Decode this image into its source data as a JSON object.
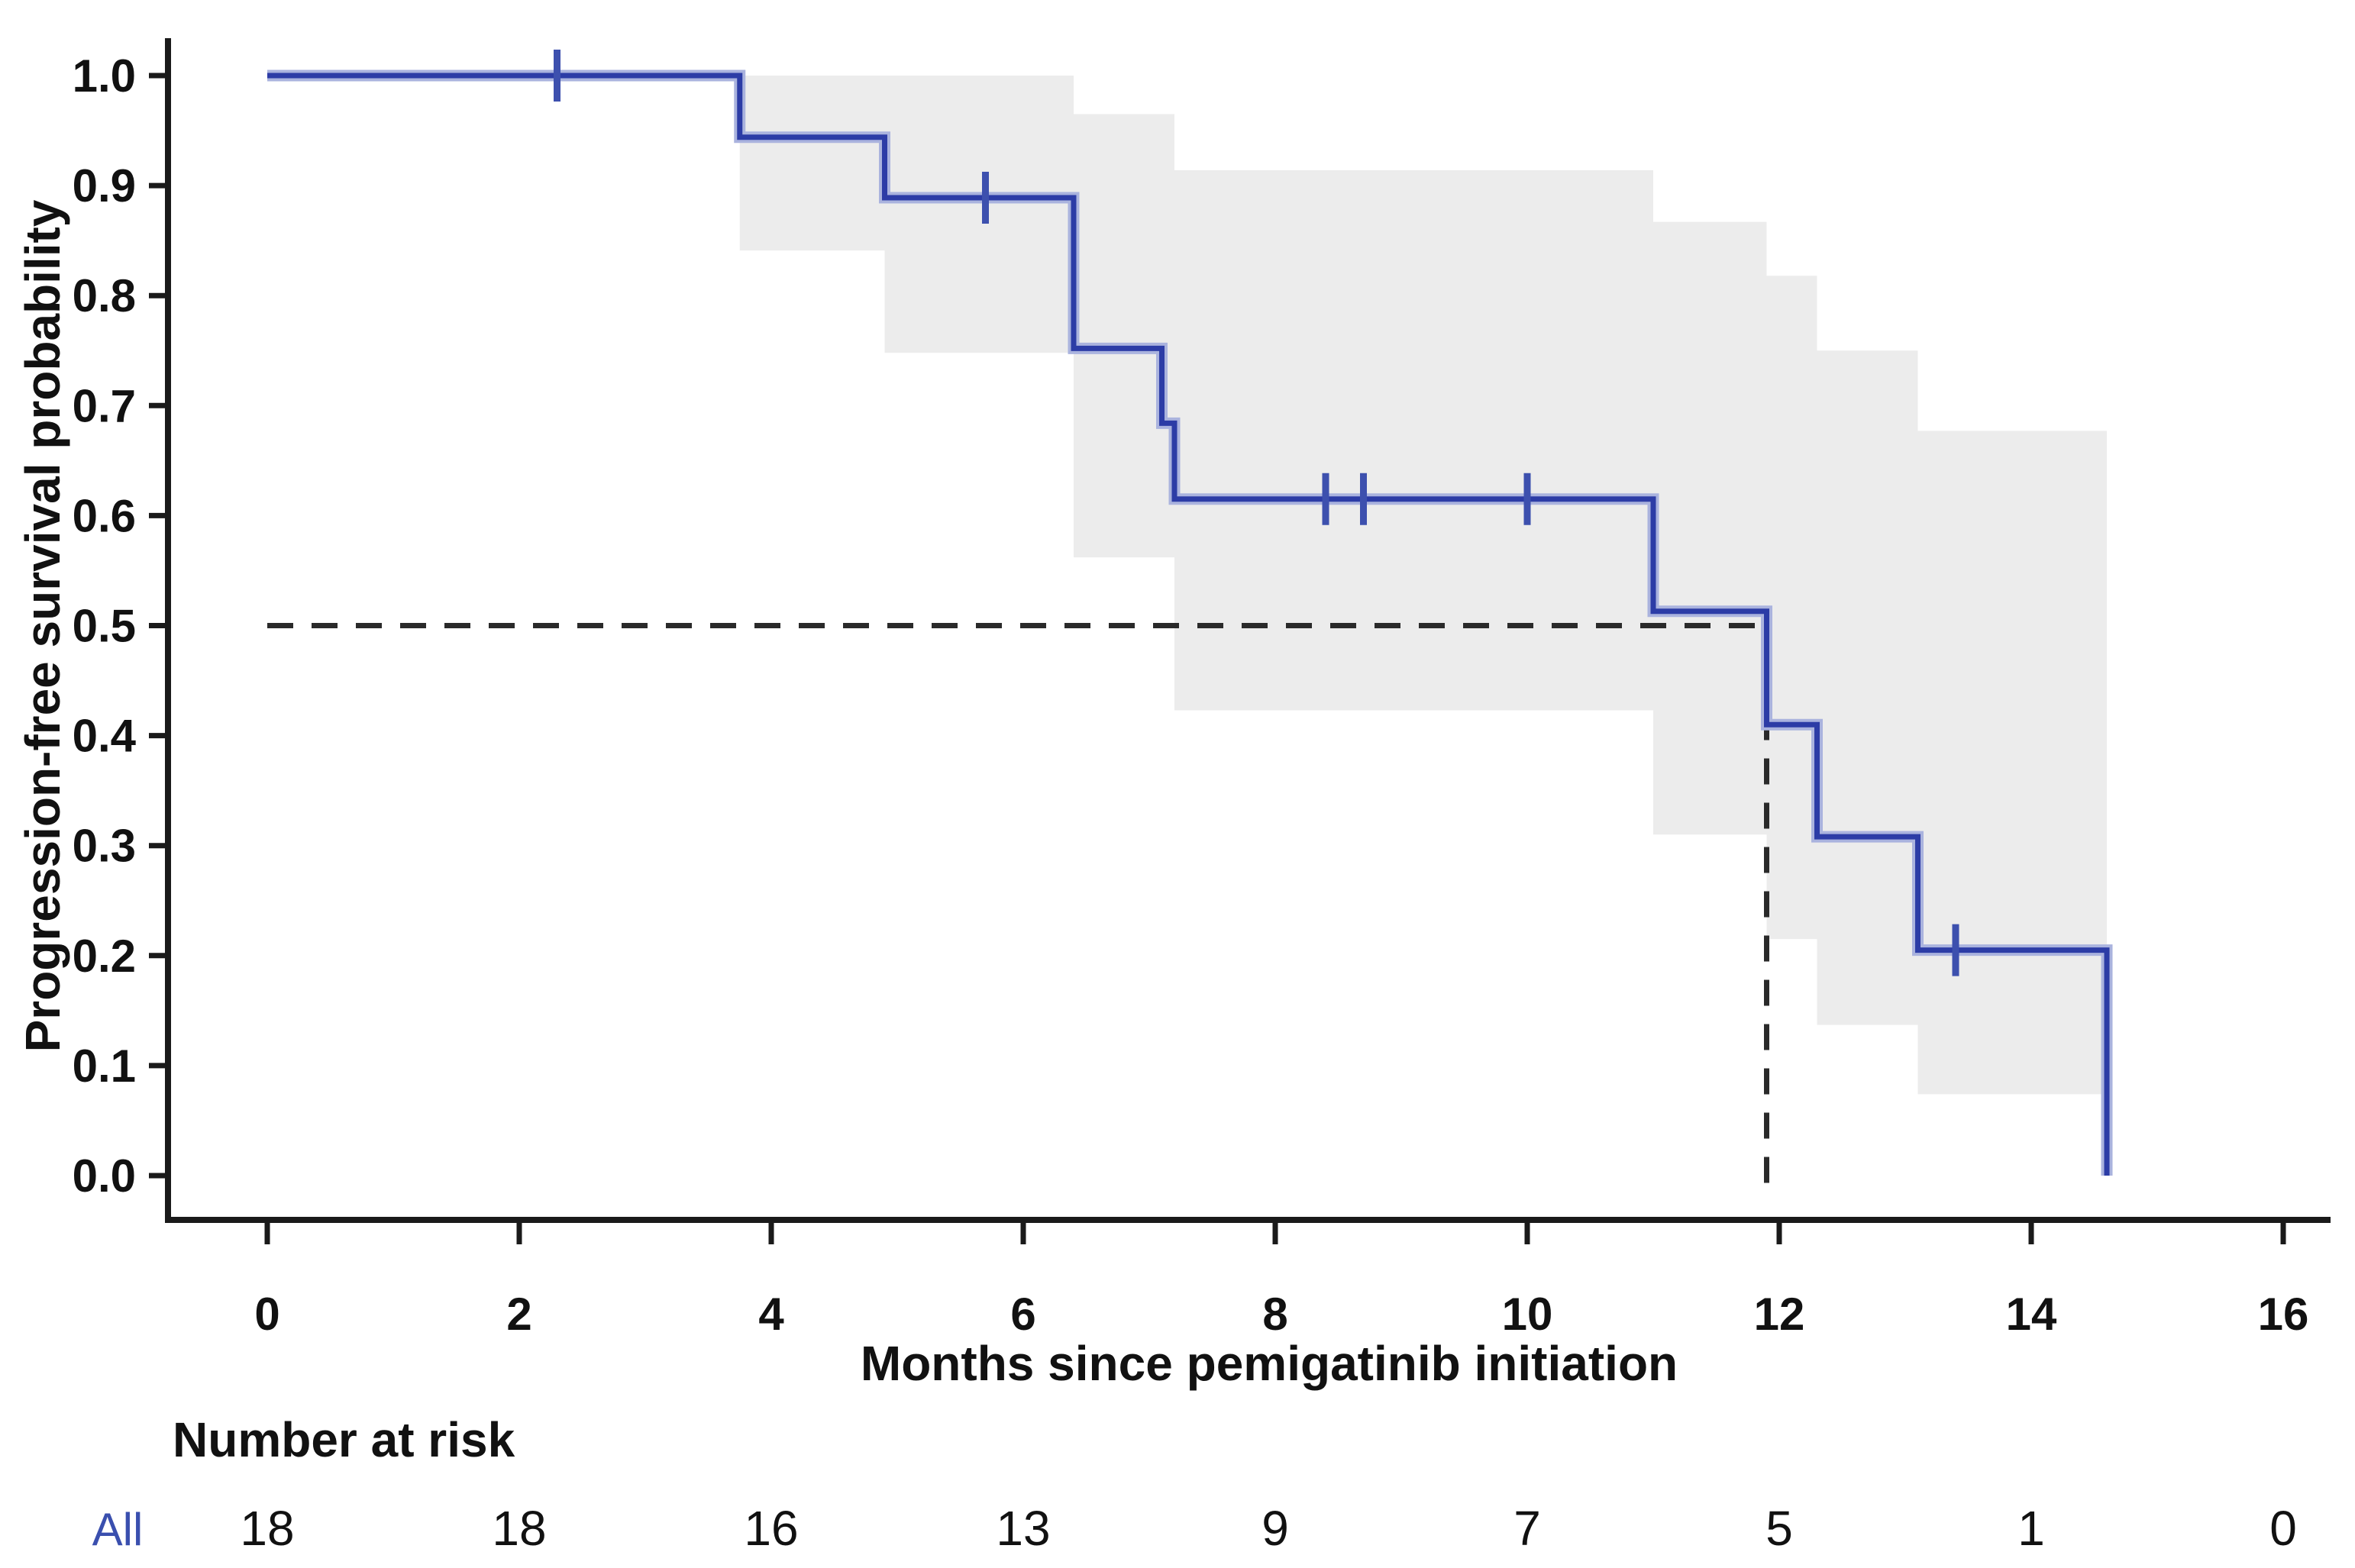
{
  "figure": {
    "background": "#ffffff",
    "description": "Kaplan-Meier progression-free survival curve with 95% confidence band, median line and number-at-risk table"
  },
  "chart_data": {
    "type": "line",
    "subtype": "kaplan-meier-step",
    "title": "",
    "xlabel": "Months since pemigatinib initiation",
    "ylabel": "Progression-free survival probability",
    "xlim": [
      0,
      16
    ],
    "ylim": [
      0.0,
      1.0
    ],
    "x_ticks": [
      0,
      2,
      4,
      6,
      8,
      10,
      12,
      14,
      16
    ],
    "y_ticks": [
      0.0,
      0.1,
      0.2,
      0.3,
      0.4,
      0.5,
      0.6,
      0.7,
      0.8,
      0.9,
      1.0
    ],
    "grid": false,
    "legend": "none",
    "colors": {
      "curve_core": "#2c3ca6",
      "curve_halo": "#aab3de",
      "censor": "#3d50ae",
      "ci_band": "#ececec",
      "median_dash": "#2a2a2a",
      "axis": "#1a1a1a",
      "text": "#111111",
      "risk_label_blue": "#3a4fae"
    },
    "series": [
      {
        "name": "All",
        "steps": [
          [
            0,
            1.0
          ],
          [
            3.75,
            1.0
          ],
          [
            3.75,
            0.944
          ],
          [
            4.9,
            0.944
          ],
          [
            4.9,
            0.889
          ],
          [
            6.4,
            0.889
          ],
          [
            6.4,
            0.752
          ],
          [
            7.1,
            0.752
          ],
          [
            7.1,
            0.684
          ],
          [
            7.2,
            0.684
          ],
          [
            7.2,
            0.615
          ],
          [
            11.0,
            0.615
          ],
          [
            11.0,
            0.513
          ],
          [
            11.9,
            0.513
          ],
          [
            11.9,
            0.41
          ],
          [
            12.3,
            0.41
          ],
          [
            12.3,
            0.308
          ],
          [
            13.1,
            0.308
          ],
          [
            13.1,
            0.205
          ],
          [
            14.6,
            0.205
          ],
          [
            14.6,
            0.0
          ]
        ],
        "censor_marks": [
          [
            2.3,
            1.0
          ],
          [
            5.7,
            0.889
          ],
          [
            8.4,
            0.615
          ],
          [
            8.7,
            0.615
          ],
          [
            10.0,
            0.615
          ],
          [
            13.4,
            0.205
          ]
        ]
      }
    ],
    "ci_band_segments": [
      [
        3.75,
        4.9,
        0.841,
        1.0
      ],
      [
        4.9,
        6.4,
        0.748,
        1.0
      ],
      [
        6.4,
        7.2,
        0.562,
        0.965
      ],
      [
        7.2,
        11.0,
        0.423,
        0.914
      ],
      [
        11.0,
        11.9,
        0.31,
        0.867
      ],
      [
        11.9,
        12.3,
        0.215,
        0.818
      ],
      [
        12.3,
        13.1,
        0.137,
        0.75
      ],
      [
        13.1,
        14.6,
        0.074,
        0.677
      ]
    ],
    "median_annotation": {
      "time": 11.9,
      "probability": 0.5
    },
    "risk_table": {
      "title": "Number at risk",
      "times": [
        0,
        2,
        4,
        6,
        8,
        10,
        12,
        14,
        16
      ],
      "rows": [
        {
          "label": "All",
          "color": "#3a4fae",
          "values": [
            18,
            18,
            16,
            13,
            9,
            7,
            5,
            1,
            0
          ]
        }
      ]
    }
  }
}
